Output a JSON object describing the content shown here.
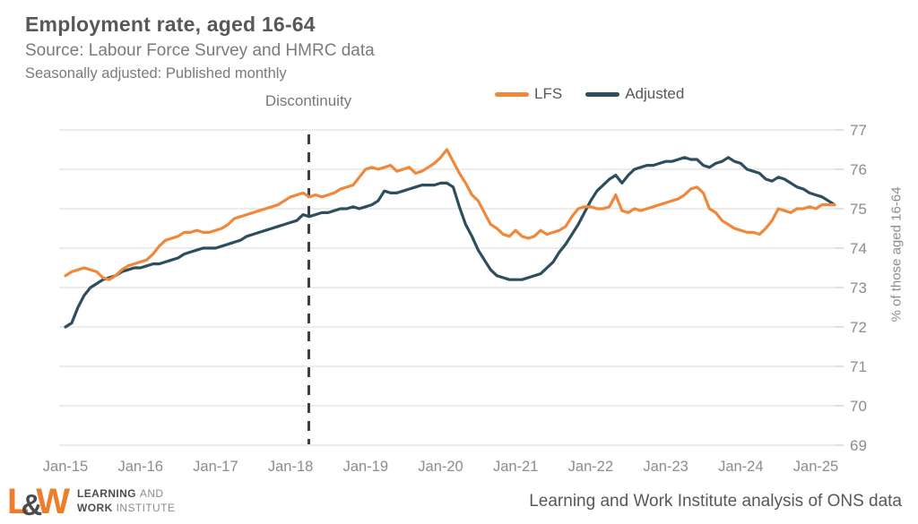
{
  "header": {
    "title": "Employment rate, aged 16-64",
    "source": "Source: Labour Force Survey and HMRC data",
    "frequency": "Seasonally adjusted: Published monthly"
  },
  "annotations": {
    "discontinuity_label": "Discontinuity"
  },
  "legend": [
    {
      "label": "LFS",
      "color": "#f0883c"
    },
    {
      "label": "Adjusted",
      "color": "#2d4f5d"
    }
  ],
  "footer": {
    "logo": {
      "l": "L",
      "amp": "&",
      "w": "W",
      "line1_bold": "LEARNING",
      "line1_rest": "AND",
      "line2_bold": "WORK",
      "line2_rest": "INSTITUTE"
    },
    "attribution": "Learning and Work Institute analysis of ONS data"
  },
  "chart_data": {
    "type": "line",
    "title": "Employment rate, aged 16-64",
    "ylabel": "% of those aged 16-64",
    "ylim": [
      69,
      77
    ],
    "yticks": [
      69,
      70,
      71,
      72,
      73,
      74,
      75,
      76,
      77
    ],
    "x_tick_labels": [
      "Jan-15",
      "Jan-16",
      "Jan-17",
      "Jan-18",
      "Jan-19",
      "Jan-20",
      "Jan-21",
      "Jan-22",
      "Jan-23",
      "Jan-24",
      "Jan-25"
    ],
    "x_start": "Jan-15",
    "x_end": "Apr-25",
    "x_frequency": "monthly",
    "grid": "horizontal",
    "legend_position": "top",
    "colors": {
      "gridline": "#d9d9d9",
      "axis_text": "#8c8c8e",
      "discontinuity_line": "#3e3e40"
    },
    "series": [
      {
        "name": "LFS",
        "color": "#f0883c",
        "values": [
          73.3,
          73.4,
          73.45,
          73.5,
          73.45,
          73.4,
          73.25,
          73.2,
          73.3,
          73.45,
          73.55,
          73.6,
          73.65,
          73.7,
          73.85,
          74.05,
          74.2,
          74.25,
          74.3,
          74.4,
          74.4,
          74.45,
          74.4,
          74.4,
          74.45,
          74.5,
          74.6,
          74.75,
          74.8,
          74.85,
          74.9,
          74.95,
          75.0,
          75.05,
          75.1,
          75.2,
          75.3,
          75.35,
          75.4,
          75.3,
          75.35,
          75.3,
          75.35,
          75.4,
          75.5,
          75.55,
          75.6,
          75.8,
          76.0,
          76.05,
          76.0,
          76.05,
          76.1,
          75.95,
          76.0,
          76.05,
          75.9,
          75.95,
          76.05,
          76.15,
          76.3,
          76.5,
          76.2,
          75.9,
          75.65,
          75.35,
          75.2,
          74.9,
          74.6,
          74.5,
          74.35,
          74.3,
          74.45,
          74.3,
          74.25,
          74.3,
          74.45,
          74.35,
          74.4,
          74.45,
          74.55,
          74.8,
          75.0,
          75.05,
          75.05,
          75.0,
          75.0,
          75.05,
          75.35,
          74.95,
          74.9,
          75.0,
          74.95,
          75.0,
          75.05,
          75.1,
          75.15,
          75.2,
          75.25,
          75.35,
          75.5,
          75.55,
          75.4,
          75.0,
          74.9,
          74.7,
          74.6,
          74.5,
          74.45,
          74.4,
          74.4,
          74.35,
          74.5,
          74.7,
          75.0,
          74.95,
          74.9,
          75.0,
          75.0,
          75.05,
          75.0,
          75.1,
          75.1,
          75.1
        ]
      },
      {
        "name": "Adjusted",
        "color": "#2d4f5d",
        "values": [
          72.0,
          72.1,
          72.5,
          72.8,
          73.0,
          73.1,
          73.2,
          73.25,
          73.3,
          73.4,
          73.45,
          73.5,
          73.5,
          73.55,
          73.6,
          73.6,
          73.65,
          73.7,
          73.75,
          73.85,
          73.9,
          73.95,
          74.0,
          74.0,
          74.0,
          74.05,
          74.1,
          74.15,
          74.2,
          74.3,
          74.35,
          74.4,
          74.45,
          74.5,
          74.55,
          74.6,
          74.65,
          74.7,
          74.85,
          74.8,
          74.85,
          74.9,
          74.9,
          74.95,
          75.0,
          75.0,
          75.05,
          75.0,
          75.05,
          75.1,
          75.2,
          75.45,
          75.4,
          75.4,
          75.45,
          75.5,
          75.55,
          75.6,
          75.6,
          75.6,
          75.65,
          75.65,
          75.55,
          75.05,
          74.6,
          74.3,
          73.95,
          73.7,
          73.45,
          73.3,
          73.25,
          73.2,
          73.2,
          73.2,
          73.25,
          73.3,
          73.35,
          73.5,
          73.65,
          73.9,
          74.1,
          74.35,
          74.6,
          74.9,
          75.2,
          75.45,
          75.6,
          75.75,
          75.85,
          75.65,
          75.85,
          76.0,
          76.05,
          76.1,
          76.1,
          76.15,
          76.2,
          76.2,
          76.25,
          76.3,
          76.25,
          76.25,
          76.1,
          76.05,
          76.15,
          76.2,
          76.3,
          76.2,
          76.15,
          76.0,
          75.95,
          75.9,
          75.75,
          75.7,
          75.8,
          75.75,
          75.65,
          75.55,
          75.5,
          75.4,
          75.35,
          75.3,
          75.2,
          75.1
        ]
      }
    ]
  }
}
